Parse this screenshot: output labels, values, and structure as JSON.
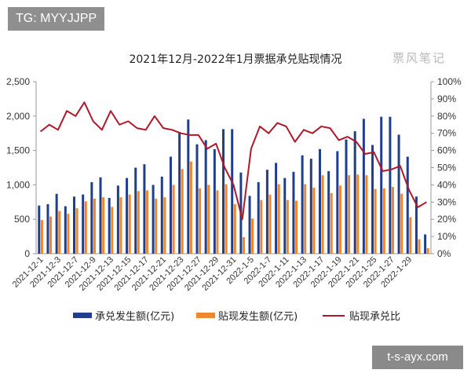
{
  "watermarks": {
    "top_left": "TG: MYYJJPP",
    "bottom_right": "t-s-ayx.com",
    "logo": "票风笔记"
  },
  "chart_data": {
    "type": "bar",
    "title": "2021年12月-2022年1月票据承兑贴现情况",
    "left_axis": {
      "ylim": [
        0,
        2500
      ],
      "ticks": [
        "0",
        "500",
        "1,000",
        "1,500",
        "2,000",
        "2,500"
      ]
    },
    "right_axis": {
      "ylim": [
        0,
        100
      ],
      "ticks": [
        "0%",
        "10%",
        "20%",
        "30%",
        "40%",
        "50%",
        "60%",
        "70%",
        "80%",
        "90%",
        "100%"
      ]
    },
    "x_tick_labels": [
      "2021-12-1",
      "2021-12-3",
      "2021-12-7",
      "2021-12-9",
      "2021-12-13",
      "2021-12-15",
      "2021-12-17",
      "2021-12-21",
      "2021-12-23",
      "2021-12-27",
      "2021-12-29",
      "2021-12-31",
      "2022-1-5",
      "2022-1-7",
      "2022-1-11",
      "2022-1-13",
      "2022-1-17",
      "2022-1-19",
      "2022-1-21",
      "2022-1-25",
      "2022-1-27",
      "2022-1-29"
    ],
    "series": [
      {
        "name": "承兑发生额(亿元)",
        "type": "bar",
        "axis": "left",
        "color": "#1f3f8c",
        "values": [
          700,
          720,
          870,
          690,
          830,
          860,
          1040,
          1110,
          810,
          990,
          1100,
          1250,
          1300,
          1000,
          1120,
          1410,
          1770,
          1950,
          1590,
          1650,
          1520,
          1810,
          1810,
          1180,
          840,
          1040,
          1220,
          1320,
          1100,
          1190,
          1430,
          1380,
          1520,
          1200,
          1490,
          1660,
          1780,
          1960,
          1580,
          1990,
          1990,
          1730,
          1410,
          830,
          280
        ]
      },
      {
        "name": "贴现发生额(亿元)",
        "type": "bar",
        "axis": "left",
        "color": "#f0862e",
        "values": [
          490,
          540,
          620,
          580,
          660,
          760,
          800,
          820,
          680,
          820,
          860,
          910,
          920,
          800,
          820,
          1000,
          1230,
          1340,
          950,
          1000,
          920,
          1010,
          720,
          240,
          510,
          780,
          860,
          1010,
          780,
          770,
          1010,
          960,
          1140,
          880,
          990,
          1140,
          1150,
          1140,
          940,
          950,
          970,
          870,
          530,
          210,
          80
        ]
      },
      {
        "name": "贴现承兑比",
        "type": "line",
        "axis": "right",
        "color": "#b0182a",
        "values": [
          71,
          75,
          72,
          83,
          80,
          88,
          77,
          72,
          83,
          75,
          77,
          73,
          72,
          80,
          73,
          72,
          70,
          69,
          69,
          61,
          64,
          50,
          40,
          20,
          61,
          74,
          70,
          76,
          74,
          65,
          72,
          70,
          74,
          73,
          66,
          68,
          65,
          58,
          59,
          48,
          49,
          51,
          37,
          27,
          30
        ]
      }
    ],
    "legend": {
      "position": "bottom"
    }
  }
}
